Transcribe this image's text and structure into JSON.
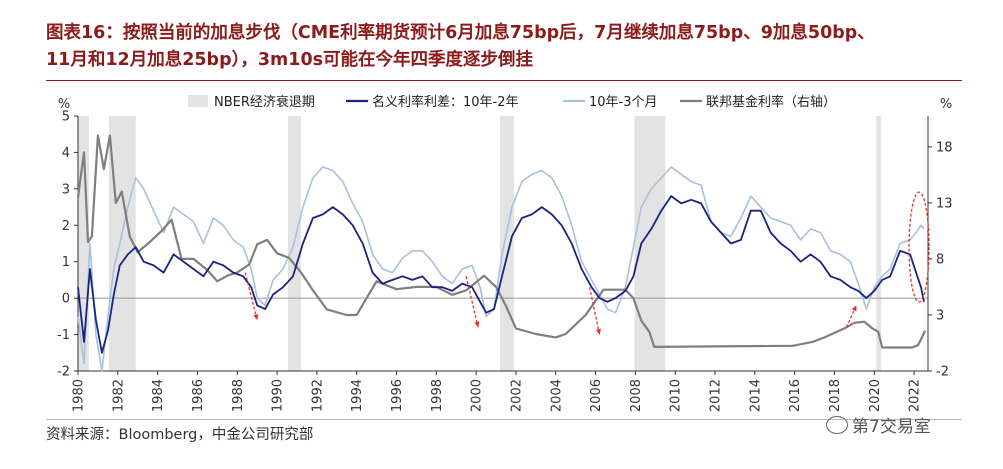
{
  "title": {
    "line1": "图表16：按照当前的加息步伐（CME利率期货预计6月加息75bp后，7月继续加息75bp、9加息50bp、",
    "line2": "11月和12月加息25bp），3m10s可能在今年四季度逐步倒挂"
  },
  "source": "资料来源：Bloomberg，中金公司研究部",
  "watermark": "第7交易室",
  "chart_data": {
    "type": "line",
    "left_unit": "%",
    "right_unit": "%",
    "xlim": [
      1980,
      2022.7
    ],
    "ylim_left": [
      -2,
      5
    ],
    "ylim_right": [
      -2,
      20.75
    ],
    "left_ticks": [
      -2,
      -1,
      0,
      1,
      2,
      3,
      4,
      5
    ],
    "right_ticks": [
      -2,
      3,
      8,
      13,
      18
    ],
    "x_ticks": [
      1980,
      1982,
      1984,
      1986,
      1988,
      1990,
      1992,
      1994,
      1996,
      1998,
      2000,
      2002,
      2004,
      2006,
      2008,
      2010,
      2012,
      2014,
      2016,
      2018,
      2020,
      2022
    ],
    "legend_position": "top",
    "recessions": [
      [
        1980.0,
        1980.55
      ],
      [
        1981.55,
        1982.9
      ],
      [
        1990.55,
        1991.2
      ],
      [
        2001.2,
        2001.9
      ],
      [
        2007.95,
        2009.5
      ],
      [
        2020.1,
        2020.35
      ]
    ],
    "colors": {
      "recession": "#e3e3e3",
      "spread_10y2y": "#1a237e",
      "spread_10y3m": "#a8c0de",
      "fed_funds": "#7f7f7f",
      "arrow": "#e8332b",
      "ellipse": "#e8332b"
    },
    "series": [
      {
        "name": "NBER经济衰退期",
        "kind": "band"
      },
      {
        "name": "名义利率利差：10年-2年",
        "axis": "left",
        "x": [
          1980,
          1980.3,
          1980.6,
          1980.9,
          1981.2,
          1981.5,
          1981.8,
          1982.1,
          1982.5,
          1982.9,
          1983.3,
          1983.8,
          1984.3,
          1984.8,
          1985.3,
          1985.8,
          1986.3,
          1986.8,
          1987.3,
          1987.8,
          1988.3,
          1988.7,
          1989.0,
          1989.4,
          1989.8,
          1990.3,
          1990.8,
          1991.3,
          1991.8,
          1992.3,
          1992.8,
          1993.3,
          1993.8,
          1994.3,
          1994.8,
          1995.3,
          1995.8,
          1996.3,
          1996.8,
          1997.3,
          1997.8,
          1998.3,
          1998.8,
          1999.3,
          1999.8,
          2000.2,
          2000.5,
          2000.9,
          2001.3,
          2001.8,
          2002.3,
          2002.8,
          2003.3,
          2003.8,
          2004.3,
          2004.8,
          2005.3,
          2005.8,
          2006.2,
          2006.6,
          2007.0,
          2007.5,
          2007.9,
          2008.3,
          2008.8,
          2009.3,
          2009.8,
          2010.3,
          2010.8,
          2011.3,
          2011.8,
          2012.3,
          2012.8,
          2013.3,
          2013.8,
          2014.3,
          2014.8,
          2015.3,
          2015.8,
          2016.3,
          2016.8,
          2017.3,
          2017.8,
          2018.3,
          2018.8,
          2019.2,
          2019.6,
          2020.0,
          2020.4,
          2020.8,
          2021.3,
          2021.8,
          2022.1,
          2022.35,
          2022.5
        ],
        "values": [
          0.3,
          -1.2,
          0.8,
          -0.6,
          -1.5,
          -0.9,
          0.1,
          0.9,
          1.2,
          1.4,
          1.0,
          0.9,
          0.7,
          1.2,
          1.0,
          0.8,
          0.6,
          1.0,
          0.9,
          0.7,
          0.6,
          0.3,
          -0.2,
          -0.3,
          0.1,
          0.3,
          0.6,
          1.5,
          2.2,
          2.3,
          2.5,
          2.3,
          2.0,
          1.5,
          0.7,
          0.4,
          0.5,
          0.6,
          0.5,
          0.6,
          0.3,
          0.3,
          0.2,
          0.4,
          0.3,
          -0.1,
          -0.4,
          -0.3,
          0.6,
          1.7,
          2.2,
          2.3,
          2.5,
          2.3,
          2.0,
          1.5,
          0.8,
          0.3,
          0.0,
          -0.1,
          0.0,
          0.2,
          0.6,
          1.5,
          1.9,
          2.4,
          2.8,
          2.6,
          2.7,
          2.6,
          2.1,
          1.8,
          1.5,
          1.6,
          2.4,
          2.4,
          1.8,
          1.5,
          1.3,
          1.0,
          1.2,
          1.0,
          0.6,
          0.5,
          0.3,
          0.2,
          0.0,
          0.2,
          0.5,
          0.6,
          1.3,
          1.2,
          0.7,
          0.3,
          -0.1
        ]
      },
      {
        "name": "10年-3个月",
        "axis": "left",
        "x": [
          1980,
          1980.3,
          1980.6,
          1980.9,
          1981.2,
          1981.5,
          1981.8,
          1982.1,
          1982.5,
          1982.9,
          1983.3,
          1983.8,
          1984.3,
          1984.8,
          1985.3,
          1985.8,
          1986.3,
          1986.8,
          1987.3,
          1987.8,
          1988.3,
          1988.7,
          1989.0,
          1989.4,
          1989.8,
          1990.3,
          1990.8,
          1991.3,
          1991.8,
          1992.3,
          1992.8,
          1993.3,
          1993.8,
          1994.3,
          1994.8,
          1995.3,
          1995.8,
          1996.3,
          1996.8,
          1997.3,
          1997.8,
          1998.3,
          1998.8,
          1999.3,
          1999.8,
          2000.2,
          2000.5,
          2000.9,
          2001.3,
          2001.8,
          2002.3,
          2002.8,
          2003.3,
          2003.8,
          2004.3,
          2004.8,
          2005.3,
          2005.8,
          2006.2,
          2006.6,
          2007.0,
          2007.5,
          2007.9,
          2008.3,
          2008.8,
          2009.3,
          2009.8,
          2010.3,
          2010.8,
          2011.3,
          2011.8,
          2012.3,
          2012.8,
          2013.3,
          2013.8,
          2014.3,
          2014.8,
          2015.3,
          2015.8,
          2016.3,
          2016.8,
          2017.3,
          2017.8,
          2018.3,
          2018.8,
          2019.2,
          2019.6,
          2020.0,
          2020.4,
          2020.8,
          2021.3,
          2021.8,
          2022.1,
          2022.35,
          2022.5
        ],
        "values": [
          -0.5,
          -1.8,
          1.5,
          -1.0,
          -2.0,
          -0.5,
          0.8,
          1.5,
          2.5,
          3.3,
          3.0,
          2.4,
          1.8,
          2.5,
          2.3,
          2.1,
          1.5,
          2.2,
          2.0,
          1.6,
          1.4,
          0.8,
          0.0,
          -0.2,
          0.5,
          0.8,
          1.4,
          2.5,
          3.3,
          3.6,
          3.5,
          3.2,
          2.6,
          2.1,
          1.2,
          0.8,
          0.7,
          1.1,
          1.3,
          1.3,
          1.0,
          0.6,
          0.4,
          0.8,
          0.9,
          0.3,
          -0.5,
          -0.3,
          1.2,
          2.5,
          3.2,
          3.4,
          3.5,
          3.3,
          2.8,
          2.0,
          1.0,
          0.5,
          0.1,
          -0.3,
          -0.4,
          0.3,
          1.4,
          2.5,
          3.0,
          3.3,
          3.6,
          3.4,
          3.2,
          3.1,
          2.1,
          1.8,
          1.7,
          2.2,
          2.8,
          2.5,
          2.2,
          2.1,
          2.0,
          1.6,
          1.9,
          1.8,
          1.3,
          1.2,
          1.0,
          0.4,
          -0.3,
          0.3,
          0.6,
          0.8,
          1.5,
          1.6,
          1.8,
          2.0,
          1.9
        ]
      },
      {
        "name": "联邦基金利率（右轴）",
        "axis": "right",
        "x": [
          1980,
          1980.3,
          1980.5,
          1980.7,
          1981.0,
          1981.3,
          1981.6,
          1981.9,
          1982.2,
          1982.6,
          1983.0,
          1983.6,
          1984.2,
          1984.7,
          1985.2,
          1985.8,
          1986.5,
          1987.0,
          1987.5,
          1988.0,
          1988.6,
          1989.0,
          1989.5,
          1990.0,
          1990.6,
          1991.2,
          1991.8,
          1992.5,
          1993.5,
          1994.0,
          1994.5,
          1995.0,
          1996.0,
          1997.0,
          1998.0,
          1998.8,
          1999.5,
          2000.4,
          2001.0,
          2001.5,
          2002.0,
          2003.0,
          2004.0,
          2004.5,
          2005.5,
          2006.4,
          2007.5,
          2007.9,
          2008.3,
          2008.7,
          2008.95,
          2015.9,
          2016.9,
          2017.5,
          2018.0,
          2018.5,
          2019.0,
          2019.5,
          2019.9,
          2020.2,
          2020.4,
          2021.9,
          2022.2,
          2022.4,
          2022.55
        ],
        "values": [
          13.5,
          17.5,
          9.5,
          10.0,
          19.0,
          16.0,
          19.0,
          13.0,
          14.0,
          10.0,
          8.6,
          9.5,
          10.5,
          11.5,
          8.0,
          8.0,
          7.0,
          6.0,
          6.5,
          6.8,
          7.5,
          9.3,
          9.7,
          8.5,
          8.1,
          6.8,
          5.2,
          3.5,
          3.0,
          3.0,
          4.5,
          6.0,
          5.3,
          5.5,
          5.5,
          4.8,
          5.2,
          6.5,
          5.5,
          3.8,
          1.8,
          1.3,
          1.0,
          1.3,
          3.0,
          5.25,
          5.25,
          4.5,
          2.5,
          1.5,
          0.15,
          0.25,
          0.6,
          1.0,
          1.4,
          1.8,
          2.3,
          2.4,
          1.8,
          1.5,
          0.1,
          0.1,
          0.3,
          1.0,
          1.6
        ]
      }
    ]
  }
}
